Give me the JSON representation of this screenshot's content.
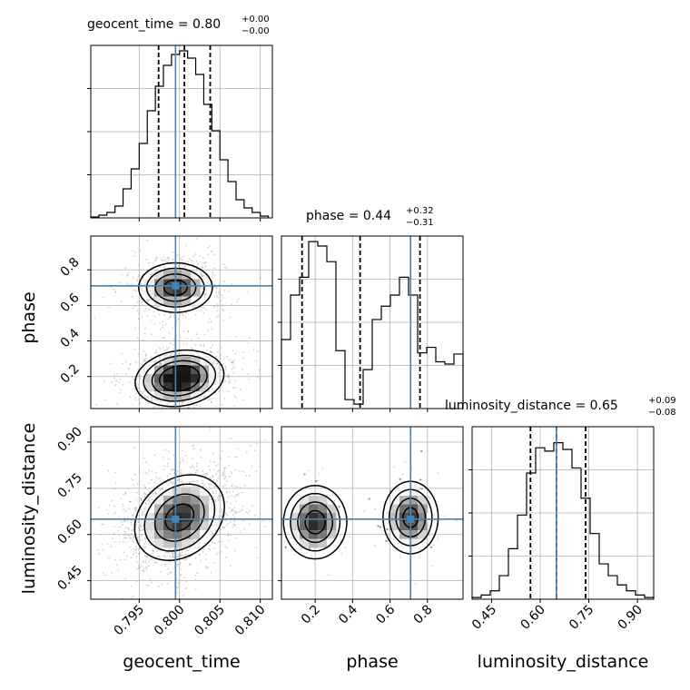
{
  "chart_data": {
    "type": "corner",
    "parameters": [
      "geocent_time",
      "phase",
      "luminosity_distance"
    ],
    "axis_labels": {
      "geocent_time": "geocent_time",
      "phase": "phase",
      "luminosity_distance": "luminosity_distance"
    },
    "truth": {
      "geocent_time": 0.7995,
      "phase": 0.71,
      "luminosity_distance": 0.65
    },
    "truth_color": "#4682b4",
    "panels": [
      {
        "name": "geocent_time",
        "title_main": "geocent_time = 0.80",
        "title_plus": "+0.00",
        "title_minus": "−0.00",
        "xlim": [
          0.789,
          0.8115
        ],
        "ticks": [
          0.795,
          0.8,
          0.805,
          0.81
        ],
        "tick_labels": [
          "0.795",
          "0.800",
          "0.805",
          "0.810"
        ],
        "quantiles": [
          0.7974,
          0.8006,
          0.8038
        ],
        "hist_bins": [
          0.789,
          0.79,
          0.791,
          0.792,
          0.793,
          0.794,
          0.795,
          0.796,
          0.797,
          0.798,
          0.799,
          0.8,
          0.801,
          0.802,
          0.803,
          0.804,
          0.805,
          0.806,
          0.807,
          0.808,
          0.809,
          0.81,
          0.811
        ],
        "hist_counts": [
          1,
          3,
          6,
          13,
          32,
          54,
          82,
          118,
          145,
          168,
          180,
          184,
          176,
          158,
          125,
          96,
          64,
          40,
          20,
          11,
          6,
          2
        ],
        "hist_max": 190
      },
      {
        "name": "phase",
        "title_main": "phase = 0.44",
        "title_plus": "+0.32",
        "title_minus": "−0.31",
        "xlim": [
          0.02,
          0.99
        ],
        "ticks": [
          0.2,
          0.4,
          0.6,
          0.8
        ],
        "tick_labels": [
          "0.2",
          "0.4",
          "0.6",
          "0.8"
        ],
        "quantiles": [
          0.13,
          0.44,
          0.76
        ],
        "hist_bins": [
          0.02,
          0.0685,
          0.117,
          0.1655,
          0.214,
          0.2625,
          0.311,
          0.3595,
          0.408,
          0.4565,
          0.505,
          0.5535,
          0.602,
          0.6505,
          0.699,
          0.7475,
          0.796,
          0.8445,
          0.893,
          0.9415,
          0.99
        ],
        "hist_counts": [
          62,
          102,
          118,
          150,
          146,
          132,
          52,
          8,
          4,
          35,
          80,
          92,
          102,
          118,
          102,
          50,
          55,
          42,
          40,
          49
        ],
        "hist_max": 155
      },
      {
        "name": "luminosity_distance",
        "title_main": "luminosity_distance = 0.65",
        "title_plus": "+0.09",
        "title_minus": "−0.08",
        "xlim": [
          0.39,
          0.95
        ],
        "ticks": [
          0.45,
          0.6,
          0.75,
          0.9
        ],
        "tick_labels": [
          "0.45",
          "0.60",
          "0.75",
          "0.90"
        ],
        "quantiles": [
          0.57,
          0.65,
          0.74
        ],
        "hist_bins": [
          0.39,
          0.418,
          0.446,
          0.474,
          0.502,
          0.53,
          0.558,
          0.586,
          0.614,
          0.642,
          0.67,
          0.698,
          0.726,
          0.754,
          0.782,
          0.81,
          0.838,
          0.866,
          0.894,
          0.922,
          0.95
        ],
        "hist_counts": [
          2,
          5,
          10,
          28,
          60,
          100,
          150,
          180,
          176,
          186,
          178,
          156,
          120,
          78,
          42,
          28,
          17,
          10,
          5,
          2
        ],
        "hist_max": 205
      }
    ],
    "density_2d": [
      {
        "x": "geocent_time",
        "y": "phase",
        "modes": [
          {
            "x": 0.7995,
            "y": 0.7,
            "sx": 0.0023,
            "sy": 0.07,
            "rho": 0.0,
            "w": 1.0
          },
          {
            "x": 0.8,
            "y": 0.19,
            "sx": 0.0026,
            "sy": 0.075,
            "rho": 0.15,
            "w": 1.3
          }
        ]
      },
      {
        "x": "geocent_time",
        "y": "luminosity_distance",
        "modes": [
          {
            "x": 0.8,
            "y": 0.655,
            "sx": 0.0028,
            "sy": 0.07,
            "rho": 0.25,
            "w": 1.0
          }
        ]
      },
      {
        "x": "phase",
        "y": "luminosity_distance",
        "modes": [
          {
            "x": 0.2,
            "y": 0.64,
            "sx": 0.085,
            "sy": 0.06,
            "rho": 0.0,
            "w": 1.0
          },
          {
            "x": 0.71,
            "y": 0.655,
            "sx": 0.075,
            "sy": 0.06,
            "rho": 0.0,
            "w": 0.95
          }
        ]
      }
    ]
  }
}
